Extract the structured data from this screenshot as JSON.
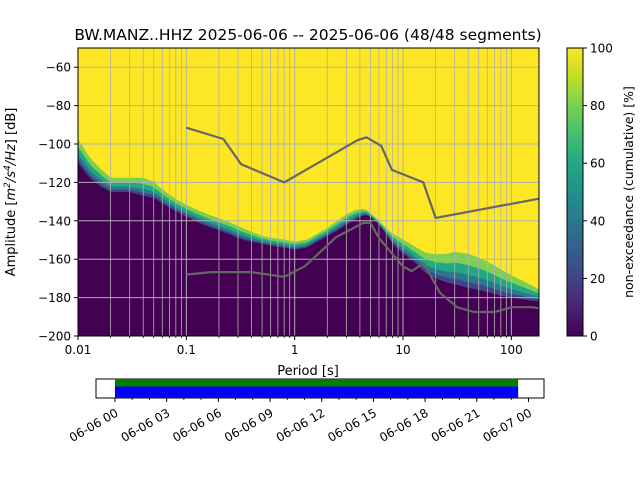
{
  "chart_data": [
    {
      "type": "heatmap",
      "title": "BW.MANZ..HHZ   2025-06-06 -- 2025-06-06  (48/48 segments)",
      "xlabel": "Period [s]",
      "ylabel_main": "Amplitude [",
      "ylabel_unit_base_1": "m",
      "ylabel_unit_exp_1": "2",
      "ylabel_unit_sep": "/",
      "ylabel_unit_base_2": "s",
      "ylabel_unit_exp_2": "4",
      "ylabel_unit_tail": "/Hz",
      "ylabel_db": "] [dB]",
      "x_scale": "log",
      "xlim": [
        0.01,
        180
      ],
      "ylim": [
        -200,
        -50
      ],
      "x_ticks": [
        0.01,
        0.1,
        1,
        10,
        100
      ],
      "x_tick_labels": [
        "0.01",
        "0.1",
        "1",
        "10",
        "100"
      ],
      "y_ticks": [
        -60,
        -80,
        -100,
        -120,
        -140,
        -160,
        -180,
        -200
      ],
      "y_tick_labels": [
        "−60",
        "−80",
        "−100",
        "−120",
        "−140",
        "−160",
        "−180",
        "−200"
      ],
      "grid": true,
      "colormap": "viridis",
      "colorbar": {
        "label": "non-exceedance (cumulative) [%]",
        "range": [
          0,
          100
        ],
        "ticks": [
          0,
          20,
          40,
          60,
          80,
          100
        ],
        "tick_labels": [
          "0",
          "20",
          "40",
          "60",
          "80",
          "100"
        ]
      },
      "distribution_curves": {
        "period": [
          0.01,
          0.013,
          0.016,
          0.02,
          0.025,
          0.03,
          0.04,
          0.05,
          0.06,
          0.08,
          0.1,
          0.13,
          0.16,
          0.2,
          0.25,
          0.3,
          0.4,
          0.5,
          0.6,
          0.8,
          1,
          1.3,
          1.6,
          2,
          2.5,
          3,
          3.5,
          4,
          4.5,
          5,
          6,
          7,
          8,
          10,
          13,
          16,
          20,
          25,
          30,
          40,
          50,
          60,
          80,
          100,
          130,
          180
        ],
        "p50_transition": [
          -98,
          -108,
          -113,
          -118,
          -118,
          -118,
          -118,
          -120,
          -124,
          -129,
          -132,
          -135,
          -137,
          -139,
          -141,
          -143,
          -146,
          -148,
          -149,
          -150,
          -151,
          -150,
          -147,
          -144,
          -140,
          -137,
          -135,
          -134,
          -134,
          -136,
          -140,
          -144,
          -147,
          -150,
          -154,
          -157,
          -158,
          -158,
          -157,
          -158,
          -160,
          -162,
          -166,
          -169,
          -172,
          -176
        ],
        "p10_transition": [
          -110,
          -118,
          -122,
          -125,
          -125,
          -125,
          -127,
          -128,
          -131,
          -135,
          -138,
          -141,
          -143,
          -145,
          -147,
          -149,
          -151,
          -152,
          -153,
          -154,
          -155,
          -154,
          -151,
          -148,
          -145,
          -142,
          -140,
          -138,
          -137,
          -138,
          -142,
          -147,
          -152,
          -157,
          -162,
          -167,
          -170,
          -172,
          -173,
          -175,
          -176,
          -177,
          -179,
          -180,
          -181,
          -182
        ]
      },
      "noise_model_high": {
        "period": [
          0.1,
          0.22,
          0.32,
          0.8,
          3.8,
          4.6,
          6.3,
          7.9,
          15.4,
          20,
          180
        ],
        "db": [
          -91.5,
          -97.4,
          -110.5,
          -120,
          -98,
          -96.5,
          -101,
          -113.5,
          -120,
          -138.5,
          -128.5
        ]
      },
      "noise_model_low": {
        "period": [
          0.1,
          0.17,
          0.4,
          0.8,
          1.24,
          2.4,
          4.3,
          5,
          6,
          10,
          12,
          15.6,
          21.9,
          31.6,
          45,
          70,
          101,
          154,
          180
        ],
        "db": [
          -168,
          -166.7,
          -166.7,
          -169.2,
          -163.7,
          -148.6,
          -141.1,
          -141.1,
          -149,
          -163.8,
          -166.2,
          -162.1,
          -177.5,
          -185,
          -187.5,
          -187.5,
          -185,
          -185,
          -185.5
        ]
      }
    },
    {
      "type": "timeline",
      "coverage_start": "06-06 00",
      "coverage_end": "06-07 00",
      "coverage_hours": [
        0,
        23.4
      ],
      "range_hours": [
        -1.1,
        24.9
      ],
      "tick_hours": [
        0,
        3,
        6,
        9,
        12,
        15,
        18,
        21,
        24
      ],
      "tick_labels": [
        "06-06 00",
        "06-06 03",
        "06-06 06",
        "06-06 09",
        "06-06 12",
        "06-06 15",
        "06-06 18",
        "06-06 21",
        "06-07 00"
      ],
      "colors": {
        "upper": "#008000",
        "lower": "#0000ff"
      }
    }
  ]
}
